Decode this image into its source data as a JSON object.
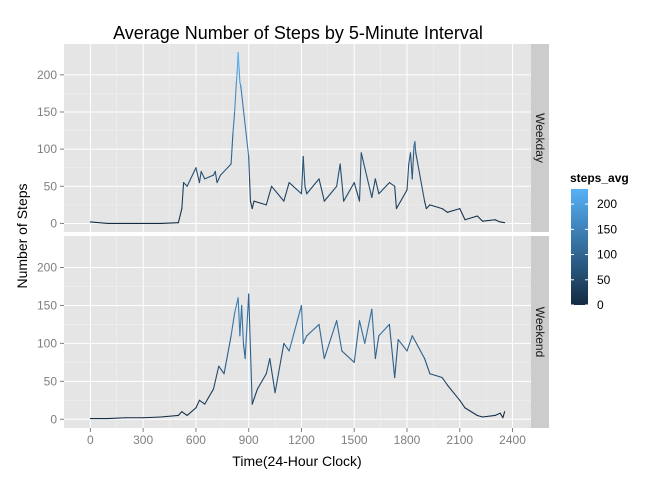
{
  "chart_data": {
    "type": "line",
    "title": "Average Number of Steps by 5-Minute Interval",
    "xlabel": "Time(24-Hour Clock)",
    "ylabel": "Number of Steps",
    "xlim": [
      -150,
      2505
    ],
    "ylim": [
      -11.5,
      241.5
    ],
    "x_ticks": [
      0,
      300,
      600,
      900,
      1200,
      1500,
      1800,
      2100,
      2400
    ],
    "x_tick_labels": [
      "0",
      "300",
      "600",
      "900",
      "1200",
      "1500",
      "1800",
      "2100",
      "2400"
    ],
    "y_ticks": [
      0,
      50,
      100,
      150,
      200
    ],
    "y_tick_labels": [
      "0",
      "50",
      "100",
      "150",
      "200"
    ],
    "grid": true,
    "legend": {
      "title": "steps_avg",
      "placement": "right",
      "labels": [
        "200",
        "150",
        "100",
        "50",
        "0"
      ],
      "values": [
        200,
        150,
        100,
        50,
        0
      ],
      "range": [
        0,
        230
      ],
      "color_low": "#132B43",
      "color_high": "#56B1F7"
    },
    "panel_background": "#e5e5e5",
    "strip_background": "#cccccc",
    "series": [
      {
        "name": "Weekday",
        "x": [
          0,
          100,
          200,
          300,
          400,
          500,
          520,
          530,
          550,
          600,
          620,
          630,
          650,
          700,
          710,
          720,
          740,
          800,
          810,
          820,
          830,
          835,
          840,
          845,
          850,
          855,
          900,
          905,
          910,
          920,
          930,
          1000,
          1030,
          1100,
          1130,
          1200,
          1210,
          1220,
          1230,
          1300,
          1330,
          1400,
          1420,
          1440,
          1500,
          1530,
          1540,
          1600,
          1620,
          1640,
          1700,
          1730,
          1740,
          1800,
          1810,
          1820,
          1830,
          1840,
          1845,
          1850,
          1900,
          1910,
          1930,
          2000,
          2030,
          2100,
          2130,
          2200,
          2230,
          2300,
          2330,
          2355
        ],
        "y": [
          2,
          0,
          0,
          0,
          0,
          1,
          20,
          55,
          50,
          75,
          55,
          70,
          60,
          65,
          70,
          55,
          65,
          80,
          120,
          150,
          190,
          205,
          230,
          210,
          190,
          185,
          90,
          60,
          30,
          20,
          30,
          25,
          50,
          30,
          55,
          40,
          90,
          50,
          40,
          60,
          30,
          50,
          80,
          30,
          55,
          30,
          95,
          35,
          60,
          40,
          55,
          50,
          20,
          45,
          80,
          95,
          60,
          105,
          110,
          95,
          30,
          20,
          25,
          20,
          15,
          20,
          5,
          10,
          3,
          5,
          2,
          1
        ]
      },
      {
        "name": "Weekend",
        "x": [
          0,
          100,
          200,
          300,
          400,
          500,
          520,
          550,
          600,
          620,
          650,
          700,
          730,
          760,
          800,
          820,
          840,
          850,
          860,
          870,
          880,
          900,
          920,
          950,
          1000,
          1020,
          1050,
          1100,
          1130,
          1200,
          1210,
          1230,
          1300,
          1330,
          1400,
          1430,
          1500,
          1530,
          1560,
          1600,
          1620,
          1640,
          1700,
          1730,
          1750,
          1800,
          1830,
          1900,
          1930,
          2000,
          2030,
          2100,
          2130,
          2200,
          2230,
          2300,
          2330,
          2345,
          2355
        ],
        "y": [
          1,
          1,
          2,
          2,
          3,
          5,
          10,
          5,
          15,
          25,
          20,
          40,
          70,
          60,
          110,
          140,
          160,
          110,
          150,
          100,
          80,
          165,
          20,
          40,
          60,
          80,
          35,
          100,
          90,
          150,
          100,
          110,
          125,
          80,
          130,
          90,
          75,
          130,
          100,
          145,
          80,
          110,
          125,
          55,
          105,
          90,
          110,
          80,
          60,
          55,
          45,
          25,
          15,
          5,
          3,
          5,
          8,
          2,
          10
        ]
      }
    ]
  }
}
